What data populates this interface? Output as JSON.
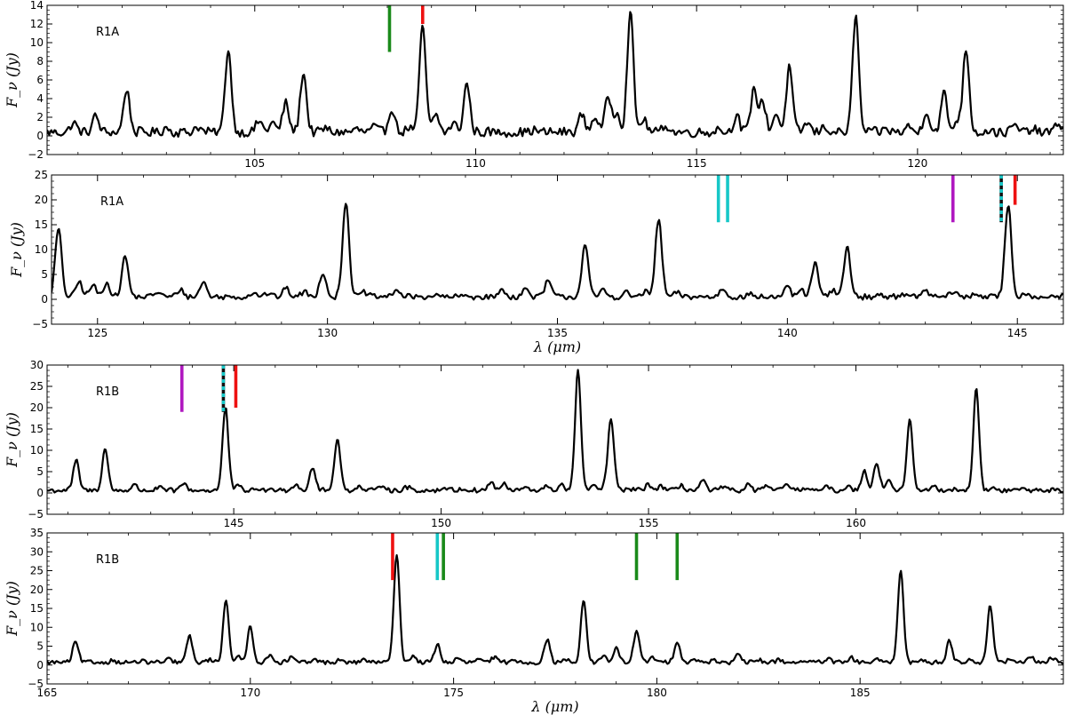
{
  "chart_data": [
    {
      "type": "line",
      "label": "R1A",
      "xlabel": "",
      "ylabel": "F_ν (Jy)",
      "xlim": [
        100.3,
        123.3
      ],
      "ylim": [
        -2,
        14
      ],
      "xticks": [
        105,
        110,
        115,
        120
      ],
      "yticks": [
        -2,
        0,
        2,
        4,
        6,
        8,
        10,
        12,
        14
      ],
      "series": [
        {
          "baseline": 0.4,
          "peaks": [
            [
              100.9,
              1.4
            ],
            [
              101.4,
              2.1
            ],
            [
              102.1,
              5.0
            ],
            [
              103.0,
              0.9
            ],
            [
              103.7,
              1.0
            ],
            [
              104.4,
              9.3
            ],
            [
              105.1,
              1.6
            ],
            [
              105.4,
              1.4
            ],
            [
              105.7,
              3.5
            ],
            [
              106.1,
              6.8
            ],
            [
              106.6,
              0.8
            ],
            [
              107.3,
              0.7
            ],
            [
              107.7,
              0.9
            ],
            [
              108.1,
              3.0
            ],
            [
              108.5,
              0.9
            ],
            [
              108.8,
              11.8
            ],
            [
              109.1,
              2.3
            ],
            [
              109.5,
              1.3
            ],
            [
              109.8,
              5.6
            ],
            [
              111.3,
              0.6
            ],
            [
              112.4,
              2.3
            ],
            [
              112.7,
              2.1
            ],
            [
              113.0,
              4.2
            ],
            [
              113.2,
              2.6
            ],
            [
              113.5,
              13.2
            ],
            [
              113.8,
              1.8
            ],
            [
              114.3,
              1.2
            ],
            [
              115.5,
              0.8
            ],
            [
              115.9,
              2.2
            ],
            [
              116.3,
              5.1
            ],
            [
              116.5,
              3.6
            ],
            [
              116.8,
              2.4
            ],
            [
              117.1,
              7.3
            ],
            [
              117.5,
              1.4
            ],
            [
              117.9,
              1.0
            ],
            [
              118.6,
              12.8
            ],
            [
              119.3,
              0.7
            ],
            [
              119.8,
              1.0
            ],
            [
              120.2,
              2.7
            ],
            [
              120.6,
              4.5
            ],
            [
              120.9,
              1.7
            ],
            [
              121.1,
              9.3
            ],
            [
              121.6,
              0.6
            ],
            [
              122.2,
              1.1
            ],
            [
              122.6,
              0.7
            ],
            [
              123.2,
              1.4
            ]
          ],
          "width": 0.07,
          "noise": 0.55
        }
      ],
      "markers": [
        {
          "x": 108.05,
          "color": "#1a8a1a",
          "y_top": 14,
          "y_bottom": 9
        },
        {
          "x": 108.8,
          "color": "#ee1111",
          "y_top": 14,
          "y_bottom": 12
        }
      ]
    },
    {
      "type": "line",
      "label": "R1A",
      "xlabel": "λ (μm)",
      "ylabel": "F_ν (Jy)",
      "xlim": [
        124,
        146
      ],
      "ylim": [
        -5,
        25
      ],
      "xticks": [
        125,
        130,
        135,
        140,
        145
      ],
      "yticks": [
        -5,
        0,
        5,
        10,
        15,
        20,
        25
      ],
      "series": [
        {
          "baseline": 0.5,
          "peaks": [
            [
              124.15,
              14.0
            ],
            [
              124.6,
              3.5
            ],
            [
              124.9,
              2.8
            ],
            [
              125.2,
              3.4
            ],
            [
              125.6,
              8.5
            ],
            [
              126.3,
              1.5
            ],
            [
              126.8,
              2.0
            ],
            [
              127.3,
              3.5
            ],
            [
              128.4,
              1.5
            ],
            [
              128.7,
              1.2
            ],
            [
              129.1,
              2.2
            ],
            [
              129.5,
              1.5
            ],
            [
              129.9,
              5.5
            ],
            [
              130.4,
              19.7
            ],
            [
              130.8,
              1.4
            ],
            [
              131.5,
              2.0
            ],
            [
              132.3,
              0.8
            ],
            [
              133.0,
              0.7
            ],
            [
              133.8,
              1.8
            ],
            [
              134.3,
              2.0
            ],
            [
              134.8,
              3.7
            ],
            [
              135.6,
              11.0
            ],
            [
              136.0,
              1.8
            ],
            [
              136.5,
              1.3
            ],
            [
              136.9,
              1.5
            ],
            [
              137.2,
              16.1
            ],
            [
              137.6,
              1.3
            ],
            [
              138.6,
              2.2
            ],
            [
              139.2,
              1.0
            ],
            [
              140.0,
              2.2
            ],
            [
              140.3,
              1.8
            ],
            [
              140.6,
              7.2
            ],
            [
              141.0,
              1.7
            ],
            [
              141.3,
              10.5
            ],
            [
              142.0,
              1.0
            ],
            [
              142.5,
              1.2
            ],
            [
              143.0,
              1.8
            ],
            [
              143.6,
              1.5
            ],
            [
              144.1,
              1.2
            ],
            [
              144.8,
              19.0
            ],
            [
              145.2,
              1.3
            ],
            [
              145.7,
              0.7
            ]
          ],
          "width": 0.07,
          "noise": 0.6
        }
      ],
      "markers": [
        {
          "x": 138.5,
          "color": "#17c7c7",
          "y_top": 25,
          "y_bottom": 15.5
        },
        {
          "x": 138.7,
          "color": "#17c7c7",
          "y_top": 25,
          "y_bottom": 15.5
        },
        {
          "x": 143.6,
          "color": "#b018c0",
          "y_top": 25,
          "y_bottom": 15.5
        },
        {
          "x": 144.65,
          "color": "#111111",
          "dash": "#17c7c7",
          "y_top": 25,
          "y_bottom": 15.5
        },
        {
          "x": 144.95,
          "color": "#ee1111",
          "y_top": 25,
          "y_bottom": 19
        }
      ]
    },
    {
      "type": "line",
      "label": "R1B",
      "xlabel": "",
      "ylabel": "F_ν (Jy)",
      "xlim": [
        140.5,
        165
      ],
      "ylim": [
        -5,
        30
      ],
      "xticks": [
        145,
        150,
        155,
        160
      ],
      "yticks": [
        -5,
        0,
        5,
        10,
        15,
        20,
        25,
        30
      ],
      "series": [
        {
          "baseline": 0.6,
          "peaks": [
            [
              141.2,
              7.5
            ],
            [
              141.9,
              10.3
            ],
            [
              142.6,
              1.8
            ],
            [
              143.2,
              1.2
            ],
            [
              143.8,
              2.2
            ],
            [
              144.8,
              19.9
            ],
            [
              145.1,
              1.5
            ],
            [
              145.6,
              1.0
            ],
            [
              146.1,
              1.2
            ],
            [
              146.5,
              2.2
            ],
            [
              146.9,
              6.0
            ],
            [
              147.5,
              13.0
            ],
            [
              148.0,
              1.5
            ],
            [
              148.6,
              2.0
            ],
            [
              149.2,
              1.4
            ],
            [
              150.1,
              1.3
            ],
            [
              150.5,
              1.0
            ],
            [
              151.2,
              2.5
            ],
            [
              151.5,
              2.0
            ],
            [
              152.0,
              1.2
            ],
            [
              152.5,
              1.5
            ],
            [
              152.9,
              2.0
            ],
            [
              153.3,
              28.6
            ],
            [
              153.7,
              1.5
            ],
            [
              154.0,
              2.5
            ],
            [
              154.1,
              16.5
            ],
            [
              154.6,
              1.0
            ],
            [
              155.0,
              2.0
            ],
            [
              155.3,
              1.6
            ],
            [
              155.8,
              1.8
            ],
            [
              156.3,
              2.8
            ],
            [
              156.8,
              1.3
            ],
            [
              157.4,
              1.8
            ],
            [
              157.8,
              1.5
            ],
            [
              158.3,
              2.2
            ],
            [
              158.8,
              1.4
            ],
            [
              159.3,
              1.3
            ],
            [
              159.8,
              1.5
            ],
            [
              160.2,
              5.3
            ],
            [
              160.5,
              7.2
            ],
            [
              160.8,
              3.0
            ],
            [
              161.3,
              16.8
            ],
            [
              161.9,
              1.5
            ],
            [
              162.3,
              1.0
            ],
            [
              162.9,
              24.0
            ],
            [
              163.3,
              1.0
            ],
            [
              164.0,
              1.0
            ],
            [
              164.5,
              0.8
            ]
          ],
          "width": 0.07,
          "noise": 0.6
        }
      ],
      "markers": [
        {
          "x": 143.75,
          "color": "#b018c0",
          "y_top": 30,
          "y_bottom": 19
        },
        {
          "x": 144.75,
          "color": "#111111",
          "dash": "#17c7c7",
          "y_top": 30,
          "y_bottom": 19
        },
        {
          "x": 145.05,
          "color": "#ee1111",
          "y_top": 30,
          "y_bottom": 20
        }
      ]
    },
    {
      "type": "line",
      "label": "R1B",
      "xlabel": "λ (μm)",
      "ylabel": "F_ν (Jy)",
      "xlim": [
        165,
        190
      ],
      "ylim": [
        -5,
        35
      ],
      "xticks": [
        165,
        170,
        175,
        180,
        185
      ],
      "yticks": [
        -5,
        0,
        5,
        10,
        15,
        20,
        25,
        30,
        35
      ],
      "series": [
        {
          "baseline": 0.7,
          "peaks": [
            [
              165.7,
              6.0
            ],
            [
              166.6,
              1.2
            ],
            [
              167.3,
              1.0
            ],
            [
              168.0,
              1.4
            ],
            [
              168.5,
              7.6
            ],
            [
              169.0,
              1.5
            ],
            [
              169.4,
              17.3
            ],
            [
              169.7,
              2.0
            ],
            [
              170.0,
              10.3
            ],
            [
              170.5,
              2.8
            ],
            [
              171.0,
              2.0
            ],
            [
              171.6,
              1.4
            ],
            [
              172.2,
              1.2
            ],
            [
              172.8,
              1.5
            ],
            [
              173.6,
              29.6
            ],
            [
              174.0,
              2.5
            ],
            [
              174.6,
              5.5
            ],
            [
              175.1,
              1.6
            ],
            [
              175.6,
              1.5
            ],
            [
              176.0,
              2.0
            ],
            [
              176.5,
              1.5
            ],
            [
              177.3,
              6.7
            ],
            [
              177.8,
              1.6
            ],
            [
              178.2,
              17.0
            ],
            [
              178.7,
              2.5
            ],
            [
              179.0,
              4.3
            ],
            [
              179.5,
              9.3
            ],
            [
              179.9,
              2.0
            ],
            [
              180.5,
              6.5
            ],
            [
              180.9,
              1.5
            ],
            [
              181.4,
              1.5
            ],
            [
              182.0,
              2.5
            ],
            [
              182.5,
              1.5
            ],
            [
              183.0,
              1.5
            ],
            [
              183.6,
              1.2
            ],
            [
              184.2,
              1.6
            ],
            [
              184.8,
              1.8
            ],
            [
              185.4,
              1.4
            ],
            [
              186.0,
              25.3
            ],
            [
              186.5,
              1.5
            ],
            [
              187.2,
              6.5
            ],
            [
              187.7,
              1.5
            ],
            [
              188.2,
              15.8
            ],
            [
              188.7,
              1.5
            ],
            [
              189.2,
              2.0
            ],
            [
              189.7,
              2.2
            ]
          ],
          "width": 0.07,
          "noise": 0.6
        }
      ],
      "markers": [
        {
          "x": 173.5,
          "color": "#ee1111",
          "y_top": 35,
          "y_bottom": 22.5
        },
        {
          "x": 174.6,
          "color": "#17c7c7",
          "y_top": 35,
          "y_bottom": 22.5
        },
        {
          "x": 174.75,
          "color": "#1a8a1a",
          "y_top": 35,
          "y_bottom": 22.5
        },
        {
          "x": 179.5,
          "color": "#1a8a1a",
          "y_top": 35,
          "y_bottom": 22.5
        },
        {
          "x": 180.5,
          "color": "#1a8a1a",
          "y_top": 35,
          "y_bottom": 22.5
        }
      ]
    }
  ]
}
